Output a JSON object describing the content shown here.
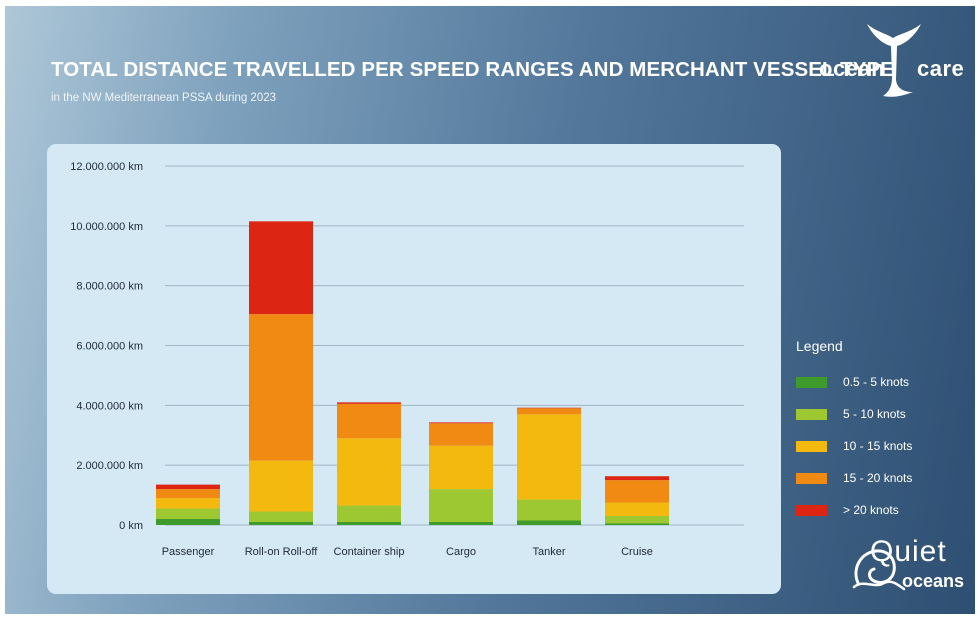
{
  "header": {
    "title": "TOTAL DISTANCE TRAVELLED PER SPEED RANGES AND MERCHANT VESSEL TYPE",
    "subtitle": "in the NW Mediterranean PSSA during 2023"
  },
  "logos": {
    "oceancare": {
      "left": "ocean",
      "right": "care",
      "icon": "whale-tail-icon"
    },
    "quietoceans": {
      "line1": "Quiet",
      "line2": "oceans",
      "icon": "wave-icon"
    }
  },
  "legend": {
    "title": "Legend",
    "placement": "right"
  },
  "chart_data": {
    "type": "bar",
    "stacked": true,
    "title": "TOTAL DISTANCE TRAVELLED PER SPEED RANGES AND MERCHANT VESSEL TYPE",
    "subtitle": "in the NW Mediterranean PSSA during 2023",
    "xlabel": "",
    "ylabel": "",
    "ylim": [
      0,
      12000000
    ],
    "grid": true,
    "categories": [
      "Passenger",
      "Roll-on Roll-off",
      "Container ship",
      "Cargo",
      "Tanker",
      "Cruise"
    ],
    "yticks": [
      {
        "value": 0,
        "label": "0 km"
      },
      {
        "value": 2000000,
        "label": "2.000.000 km"
      },
      {
        "value": 4000000,
        "label": "4.000.000 km"
      },
      {
        "value": 6000000,
        "label": "6.000.000 km"
      },
      {
        "value": 8000000,
        "label": "8.000.000 km"
      },
      {
        "value": 10000000,
        "label": "10.000.000 km"
      },
      {
        "value": 12000000,
        "label": "12.000.000 km"
      }
    ],
    "series": [
      {
        "name": "0.5 - 5 knots",
        "color": "#3f9a2c",
        "values": [
          200000,
          100000,
          100000,
          100000,
          150000,
          50000
        ]
      },
      {
        "name": "5 - 10 knots",
        "color": "#9ec832",
        "values": [
          350000,
          350000,
          550000,
          1100000,
          700000,
          250000
        ]
      },
      {
        "name": "10 - 15 knots",
        "color": "#f3b90f",
        "values": [
          350000,
          1700000,
          2250000,
          1450000,
          2850000,
          450000
        ]
      },
      {
        "name": "15 - 20 knots",
        "color": "#f08a12",
        "values": [
          300000,
          4900000,
          1150000,
          750000,
          200000,
          750000
        ]
      },
      {
        "name": "> 20 knots",
        "color": "#dc2512",
        "values": [
          150000,
          3100000,
          50000,
          30000,
          20000,
          130000
        ]
      }
    ]
  }
}
